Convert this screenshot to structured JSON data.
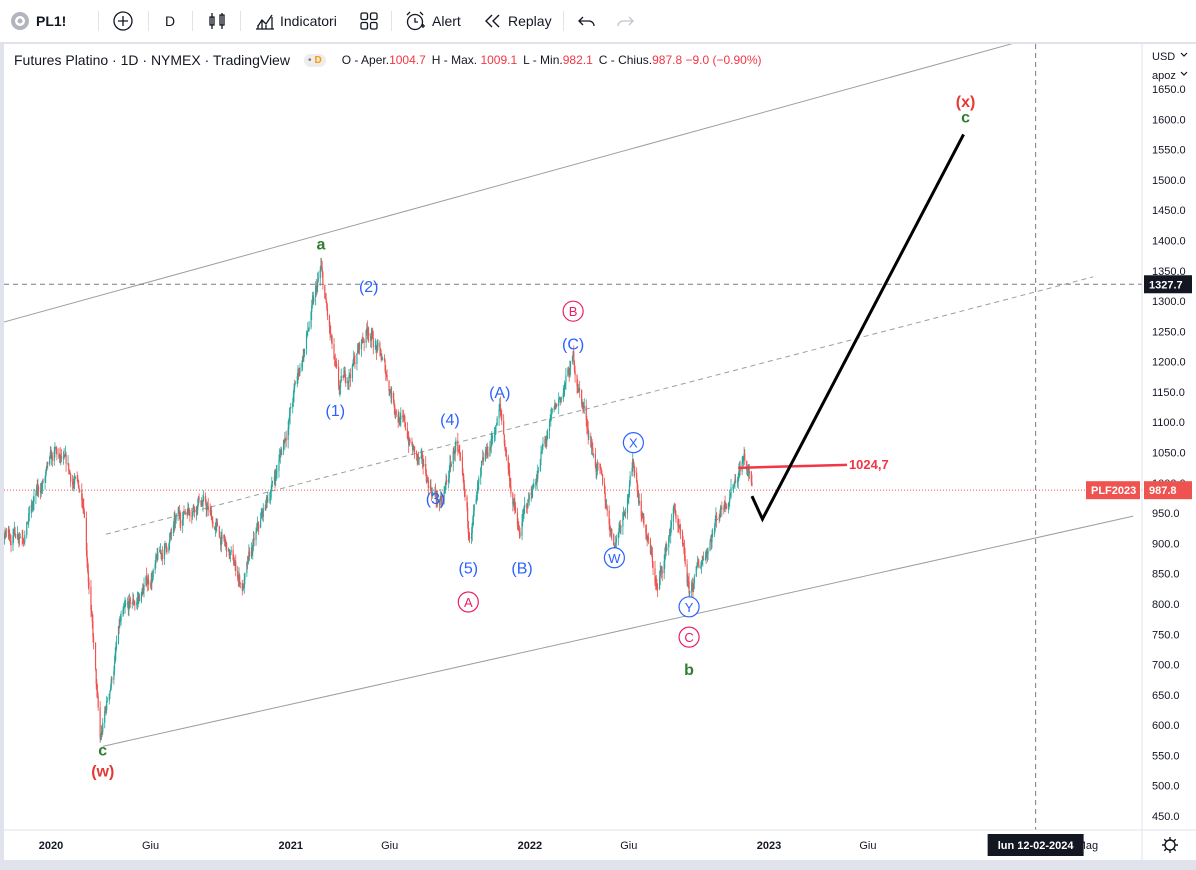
{
  "toolbar": {
    "symbol": "PL1!",
    "interval": "D",
    "indicators_label": "Indicatori",
    "alert_label": "Alert",
    "replay_label": "Replay"
  },
  "legend": {
    "title": "Futures Platino · 1D · NYMEX · TradingView",
    "badge_text": "D",
    "open_label": "O - Aper.",
    "open": "1004.7",
    "high_label": "H - Max.",
    "high": "1009.1",
    "low_label": "L - Min.",
    "low": "982.1",
    "close_label": "C - Chius.",
    "close": "987.8",
    "change": "−9.0 (−0.90%)"
  },
  "price_axis": {
    "currency": "USD",
    "extra": "apoz",
    "ticks": [
      "1650.0",
      "1600.0",
      "1550.0",
      "1500.0",
      "1450.0",
      "1400.0",
      "1350.0",
      "1300.0",
      "1250.0",
      "1200.0",
      "1150.0",
      "1100.0",
      "1050.0",
      "1000.0",
      "950.0",
      "900.0",
      "850.0",
      "800.0",
      "750.0",
      "700.0",
      "650.0",
      "600.0",
      "550.0",
      "500.0",
      "450.0"
    ],
    "crosshair_price": "1327.7",
    "symbol_tag": "PLF2023",
    "last_price": "987.8"
  },
  "time_axis": {
    "ticks": [
      "2020",
      "Giu",
      "2021",
      "Giu",
      "2022",
      "Giu",
      "2023",
      "Giu",
      "Mag"
    ],
    "crosshair_date": "lun 12-02-2024"
  },
  "annotations": {
    "level_label": "1024,7",
    "wave_a": "a",
    "wave_c_start": "c",
    "wave_w": "(w)",
    "wave_1": "(1)",
    "wave_2": "(2)",
    "wave_3": "(3)",
    "wave_4": "(4)",
    "wave_5": "(5)",
    "wave_A_paren": "(A)",
    "wave_B_paren": "(B)",
    "wave_C_paren": "(C)",
    "circ_A": "A",
    "circ_B": "B",
    "circ_C": "C",
    "circ_W": "W",
    "circ_X": "X",
    "circ_Y": "Y",
    "wave_b": "b",
    "wave_x": "(x)",
    "wave_c_end": "c"
  },
  "colors": {
    "up": "#26a69a",
    "down": "#ef5350",
    "green_label": "#2e7d32",
    "blue_label": "#2962ff",
    "pink_label": "#e91e63",
    "red_label": "#e53935",
    "level_line": "#f23645",
    "projection": "#000000",
    "channel": "#9e9e9e"
  },
  "chart_data": {
    "type": "candlestick",
    "title": "Futures Platino · 1D · NYMEX · TradingView",
    "ylim": [
      440,
      1665
    ],
    "y_scale": "linear",
    "grid": false,
    "price_path": [
      [
        "2019-08-01",
        895
      ],
      [
        "2019-09-05",
        985
      ],
      [
        "2019-10-10",
        900
      ],
      [
        "2019-11-20",
        930
      ],
      [
        "2020-01-08",
        1040
      ],
      [
        "2020-02-20",
        975
      ],
      [
        "2020-03-16",
        565
      ],
      [
        "2020-04-15",
        760
      ],
      [
        "2020-05-20",
        820
      ],
      [
        "2020-07-25",
        960
      ],
      [
        "2020-08-15",
        980
      ],
      [
        "2020-10-20",
        830
      ],
      [
        "2020-12-15",
        1040
      ],
      [
        "2021-02-16",
        1345
      ],
      [
        "2021-03-15",
        1140
      ],
      [
        "2021-04-30",
        1260
      ],
      [
        "2021-06-20",
        1100
      ],
      [
        "2021-07-15",
        1030
      ],
      [
        "2021-08-20",
        960
      ],
      [
        "2021-09-10",
        1065
      ],
      [
        "2021-09-29",
        915
      ],
      [
        "2021-11-16",
        1120
      ],
      [
        "2021-12-15",
        910
      ],
      [
        "2022-01-20",
        1050
      ],
      [
        "2022-03-08",
        1200
      ],
      [
        "2022-05-10",
        900
      ],
      [
        "2022-06-08",
        1030
      ],
      [
        "2022-07-15",
        820
      ],
      [
        "2022-08-10",
        960
      ],
      [
        "2022-09-01",
        810
      ],
      [
        "2022-10-15",
        950
      ],
      [
        "2022-11-24",
        1045
      ],
      [
        "2022-12-06",
        987.8
      ]
    ],
    "last_close": 987.8,
    "horizontal_level": {
      "value": 1024.7,
      "from": "2022-11-15",
      "to": "2023-04-30",
      "label": "1024,7"
    },
    "crosshair": {
      "price": 1327.7,
      "date": "2024-02-12"
    },
    "projection": [
      [
        "2022-12-06",
        978
      ],
      [
        "2022-12-22",
        940
      ],
      [
        "2023-10-25",
        1575
      ]
    ],
    "channel_upper": [
      [
        "2019-10-20",
        1265
      ],
      [
        "2024-07-10",
        1780
      ]
    ],
    "channel_lower": [
      [
        "2020-03-20",
        565
      ],
      [
        "2024-07-10",
        945
      ]
    ],
    "channel_mid": [
      [
        "2020-03-25",
        915
      ],
      [
        "2024-05-10",
        1340
      ]
    ],
    "wave_labels": [
      {
        "text": "a",
        "date": "2021-02-16",
        "price": 1385,
        "style": "green"
      },
      {
        "text": "c",
        "date": "2020-03-20",
        "price": 550,
        "style": "green"
      },
      {
        "text": "(w)",
        "date": "2020-03-20",
        "price": 515,
        "style": "red"
      },
      {
        "text": "(1)",
        "date": "2021-03-10",
        "price": 1110,
        "style": "blue"
      },
      {
        "text": "(2)",
        "date": "2021-04-30",
        "price": 1315,
        "style": "blue"
      },
      {
        "text": "(3)",
        "date": "2021-08-10",
        "price": 965,
        "style": "blue"
      },
      {
        "text": "(4)",
        "date": "2021-09-01",
        "price": 1095,
        "style": "blue"
      },
      {
        "text": "(5)",
        "date": "2021-09-29",
        "price": 850,
        "style": "blue"
      },
      {
        "text": "(A)",
        "date": "2021-11-16",
        "price": 1140,
        "style": "blue"
      },
      {
        "text": "(B)",
        "date": "2021-12-20",
        "price": 850,
        "style": "blue"
      },
      {
        "text": "(C)",
        "date": "2022-03-08",
        "price": 1220,
        "style": "blue"
      },
      {
        "text": "A",
        "date": "2021-09-29",
        "price": 795,
        "style": "pink-circle"
      },
      {
        "text": "B",
        "date": "2022-03-08",
        "price": 1275,
        "style": "pink-circle"
      },
      {
        "text": "W",
        "date": "2022-05-10",
        "price": 868,
        "style": "blue-circle"
      },
      {
        "text": "X",
        "date": "2022-06-08",
        "price": 1058,
        "style": "blue-circle"
      },
      {
        "text": "Y",
        "date": "2022-09-01",
        "price": 787,
        "style": "blue-circle"
      },
      {
        "text": "C",
        "date": "2022-09-01",
        "price": 737,
        "style": "pink-circle"
      },
      {
        "text": "b",
        "date": "2022-09-01",
        "price": 683,
        "style": "green"
      },
      {
        "text": "(x)",
        "date": "2023-10-28",
        "price": 1620,
        "style": "red"
      },
      {
        "text": "c",
        "date": "2023-10-28",
        "price": 1595,
        "style": "green"
      }
    ]
  }
}
